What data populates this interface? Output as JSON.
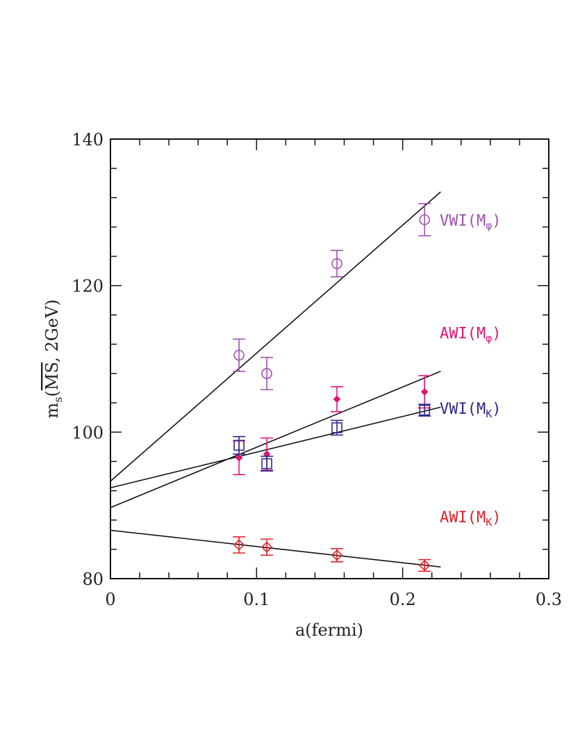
{
  "chart_data": {
    "type": "scatter",
    "title": "",
    "xlabel": "a(fermi)",
    "ylabel_main": "m",
    "ylabel_sub": "s",
    "ylabel_scheme": "MS",
    "ylabel_rest": ", 2GeV)",
    "xlim": [
      0,
      0.3
    ],
    "ylim": [
      80,
      140
    ],
    "xticks": [
      0,
      0.1,
      0.2,
      0.3
    ],
    "xtick_labels": [
      "0",
      "0.1",
      "0.2",
      "0.3"
    ],
    "yticks": [
      80,
      100,
      120,
      140
    ],
    "ytick_labels": [
      "80",
      "100",
      "120",
      "140"
    ],
    "grid": false,
    "series": [
      {
        "name": "VWI(M_phi)",
        "label_main": "VWI(M",
        "label_sub": "φ",
        "color": "#a050b0",
        "marker": "circle",
        "x": [
          0.088,
          0.107,
          0.155,
          0.215
        ],
        "y": [
          110.5,
          108.0,
          123.0,
          129.0
        ],
        "yerr": [
          2.2,
          2.2,
          1.8,
          2.2
        ],
        "fit": {
          "x0": 0,
          "y0": 93.3,
          "x1": 0.226,
          "y1": 132.8
        },
        "label_y": 128.2
      },
      {
        "name": "AWI(M_phi)",
        "label_main": "AWI(M",
        "label_sub": "φ",
        "color": "#e0157a",
        "marker": "dot",
        "x": [
          0.088,
          0.107,
          0.155,
          0.215
        ],
        "y": [
          96.5,
          97.0,
          104.5,
          105.5
        ],
        "yerr": [
          2.3,
          2.2,
          1.7,
          2.2
        ],
        "fit": {
          "x0": 0,
          "y0": 89.7,
          "x1": 0.226,
          "y1": 108.3
        },
        "label_y": 112.8
      },
      {
        "name": "VWI(M_K)",
        "label_main": "VWI(M",
        "label_sub": "K",
        "color": "#2d2a8c",
        "marker": "square",
        "x": [
          0.088,
          0.107,
          0.155,
          0.215
        ],
        "y": [
          98.2,
          95.7,
          100.6,
          103.0
        ],
        "yerr": [
          1.2,
          1.0,
          1.0,
          0.8
        ],
        "fit": {
          "x0": 0,
          "y0": 92.4,
          "x1": 0.226,
          "y1": 103.4
        },
        "label_y": 102.5
      },
      {
        "name": "AWI(M_K)",
        "label_main": "AWI(M",
        "label_sub": "K",
        "color": "#e0202a",
        "marker": "diamond",
        "x": [
          0.088,
          0.107,
          0.155,
          0.215
        ],
        "y": [
          84.6,
          84.3,
          83.2,
          81.8
        ],
        "yerr": [
          1.1,
          1.1,
          0.9,
          0.8
        ],
        "fit": {
          "x0": 0,
          "y0": 86.6,
          "x1": 0.226,
          "y1": 81.6
        },
        "label_y": 87.7
      }
    ]
  }
}
